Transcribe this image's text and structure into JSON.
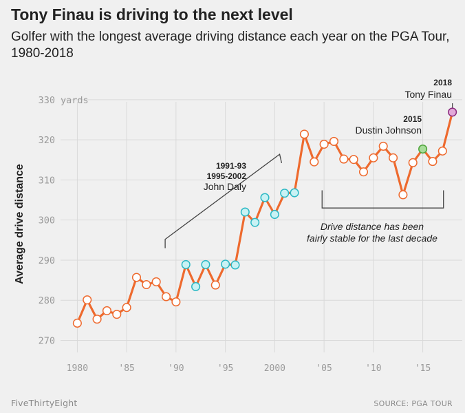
{
  "header": {
    "title": "Tony Finau is driving to the next level",
    "subtitle": "Golfer with the longest average driving distance each year on the PGA Tour, 1980-2018"
  },
  "footer": {
    "brand": "FiveThirtyEight",
    "source": "SOURCE: PGA TOUR"
  },
  "colors": {
    "line": "#ee6a2e",
    "default_marker_fill": "#ffffff",
    "daly_marker_fill": "#c9f2f4",
    "daly_marker_stroke": "#2bb8c4",
    "johnson_marker_fill": "#a7dd9a",
    "johnson_marker_stroke": "#4ea43a",
    "finau_marker_fill": "#e2a9d9",
    "finau_marker_stroke": "#8a2a7e",
    "grid": "#d9d9d9",
    "annotation_line": "#444444"
  },
  "chart_data": {
    "type": "line",
    "title": "Tony Finau is driving to the next level",
    "ylabel": "Average drive distance",
    "y_unit": "yards",
    "xlim": [
      1978.3,
      2019
    ],
    "ylim": [
      267,
      331
    ],
    "y_ticks": [
      270,
      280,
      290,
      300,
      310,
      320,
      330
    ],
    "x_ticks": [
      {
        "value": 1980,
        "label": "1980"
      },
      {
        "value": 1985,
        "label": "'85"
      },
      {
        "value": 1990,
        "label": "'90"
      },
      {
        "value": 1995,
        "label": "'95"
      },
      {
        "value": 2000,
        "label": "2000"
      },
      {
        "value": 2005,
        "label": "'05"
      },
      {
        "value": 2010,
        "label": "'10"
      },
      {
        "value": 2015,
        "label": "'15"
      }
    ],
    "grid": true,
    "x": [
      1980,
      1981,
      1982,
      1983,
      1984,
      1985,
      1986,
      1987,
      1988,
      1989,
      1990,
      1991,
      1992,
      1993,
      1994,
      1995,
      1996,
      1997,
      1998,
      1999,
      2000,
      2001,
      2002,
      2003,
      2004,
      2005,
      2006,
      2007,
      2008,
      2009,
      2010,
      2011,
      2012,
      2013,
      2014,
      2015,
      2016,
      2017,
      2018
    ],
    "values": [
      274.3,
      280.1,
      275.3,
      277.4,
      276.5,
      278.2,
      285.7,
      283.9,
      284.6,
      280.9,
      279.6,
      288.9,
      283.4,
      288.9,
      283.8,
      289.0,
      288.8,
      302.0,
      299.4,
      305.6,
      301.4,
      306.7,
      306.8,
      321.4,
      314.5,
      318.9,
      319.6,
      315.2,
      315.1,
      312.0,
      315.5,
      318.4,
      315.5,
      306.3,
      314.3,
      317.7,
      314.6,
      317.2,
      326.9
    ],
    "highlight_daly": [
      1991,
      1992,
      1993,
      1995,
      1996,
      1997,
      1998,
      1999,
      2000,
      2001,
      2002
    ],
    "highlight_johnson": [
      2015
    ],
    "highlight_finau": [
      2018
    ],
    "annotations": {
      "daly_years_1": "1991-93",
      "daly_years_2": "1995-2002",
      "daly_name": "John Daly",
      "johnson_year": "2015",
      "johnson_name": "Dustin Johnson",
      "finau_year": "2018",
      "finau_name": "Tony Finau",
      "stable_line1": "Drive distance has been",
      "stable_line2": "fairly stable for the last decade"
    }
  }
}
